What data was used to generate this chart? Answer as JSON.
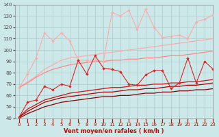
{
  "xlabel": "Vent moyen/en rafales ( km/h )",
  "xlim": [
    -0.5,
    23
  ],
  "ylim": [
    40,
    140
  ],
  "yticks": [
    40,
    50,
    60,
    70,
    80,
    90,
    100,
    110,
    120,
    130,
    140
  ],
  "xticks": [
    0,
    1,
    2,
    3,
    4,
    5,
    6,
    7,
    8,
    9,
    10,
    11,
    12,
    13,
    14,
    15,
    16,
    17,
    18,
    19,
    20,
    21,
    22,
    23
  ],
  "bg_color": "#cce8e8",
  "grid_color": "#aacccc",
  "line_jagged1_color": "#ffaaaa",
  "line_smooth1_color": "#ffaaaa",
  "line_smooth2_color": "#ff8888",
  "line_jagged2_color": "#dd2222",
  "line_smooth3_color": "#cc1111",
  "line_smooth4_color": "#aa0000",
  "line_smooth5_color": "#880000",
  "x": [
    0,
    1,
    2,
    3,
    4,
    5,
    6,
    7,
    8,
    9,
    10,
    11,
    12,
    13,
    14,
    15,
    16,
    17,
    18,
    19,
    20,
    21,
    22,
    23
  ],
  "jagged1_y": [
    67,
    79,
    93,
    115,
    108,
    115,
    108,
    91,
    91,
    91,
    90,
    133,
    130,
    135,
    118,
    136,
    120,
    111,
    112,
    113,
    110,
    125,
    127,
    131
  ],
  "smooth1_y": [
    67,
    72,
    77,
    83,
    87,
    91,
    93,
    94,
    95,
    96,
    97,
    98,
    99,
    100,
    101,
    102,
    103,
    104,
    105,
    106,
    107,
    108,
    109,
    110
  ],
  "smooth2_y": [
    67,
    71,
    76,
    80,
    83,
    85,
    87,
    88,
    89,
    90,
    90,
    91,
    91,
    92,
    92,
    93,
    93,
    94,
    95,
    95,
    96,
    97,
    98,
    99
  ],
  "jagged2_y": [
    41,
    54,
    56,
    68,
    65,
    70,
    68,
    91,
    79,
    95,
    84,
    83,
    81,
    70,
    69,
    78,
    82,
    82,
    66,
    71,
    93,
    71,
    90,
    83
  ],
  "smooth3_y": [
    41,
    48,
    52,
    56,
    58,
    60,
    62,
    63,
    64,
    65,
    66,
    67,
    67,
    68,
    69,
    69,
    70,
    70,
    71,
    71,
    72,
    72,
    73,
    74
  ],
  "smooth4_y": [
    41,
    46,
    50,
    54,
    56,
    58,
    59,
    60,
    61,
    62,
    63,
    63,
    64,
    65,
    65,
    66,
    66,
    67,
    68,
    68,
    69,
    69,
    70,
    71
  ],
  "smooth5_y": [
    40,
    44,
    47,
    50,
    52,
    54,
    55,
    56,
    57,
    58,
    59,
    59,
    60,
    60,
    61,
    62,
    62,
    63,
    63,
    64,
    64,
    65,
    65,
    66
  ]
}
